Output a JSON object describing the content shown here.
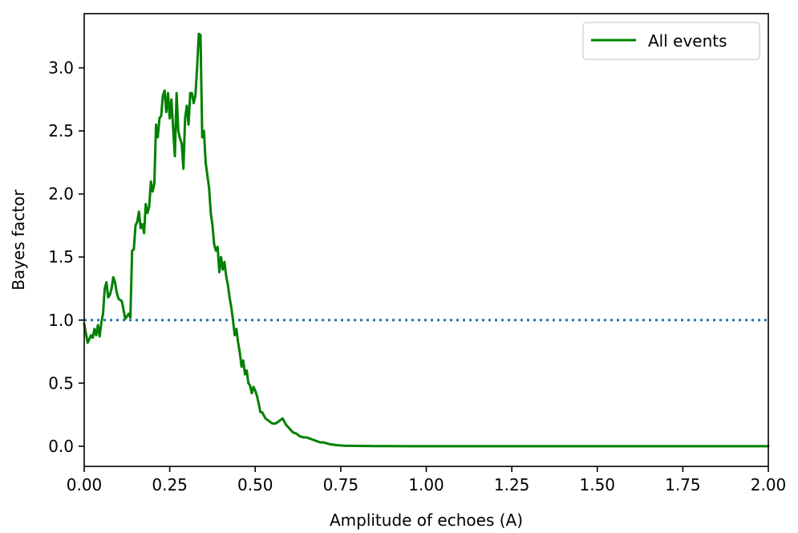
{
  "chart_data": {
    "type": "line",
    "title": "",
    "xlabel": "Amplitude of echoes (A)",
    "ylabel": "Bayes factor",
    "xlim": [
      0.0,
      2.0
    ],
    "ylim": [
      -0.16,
      3.43
    ],
    "xticks": [
      0.0,
      0.25,
      0.5,
      0.75,
      1.0,
      1.25,
      1.5,
      1.75,
      2.0
    ],
    "xtick_labels": [
      "0.00",
      "0.25",
      "0.50",
      "0.75",
      "1.00",
      "1.25",
      "1.50",
      "1.75",
      "2.00"
    ],
    "yticks": [
      0.0,
      0.5,
      1.0,
      1.5,
      2.0,
      2.5,
      3.0
    ],
    "ytick_labels": [
      "0.0",
      "0.5",
      "1.0",
      "1.5",
      "2.0",
      "2.5",
      "3.0"
    ],
    "grid": false,
    "legend": {
      "position": "upper-right"
    },
    "reference_line": {
      "y": 1.0,
      "style": "dotted",
      "color": "#1f77b4"
    },
    "series": [
      {
        "name": "All events",
        "color": "#008000",
        "x": [
          0.0,
          0.01,
          0.015,
          0.02,
          0.025,
          0.03,
          0.035,
          0.04,
          0.045,
          0.05,
          0.055,
          0.06,
          0.065,
          0.07,
          0.075,
          0.08,
          0.085,
          0.09,
          0.095,
          0.1,
          0.105,
          0.11,
          0.115,
          0.12,
          0.125,
          0.13,
          0.135,
          0.14,
          0.145,
          0.15,
          0.155,
          0.16,
          0.165,
          0.17,
          0.175,
          0.18,
          0.185,
          0.19,
          0.195,
          0.2,
          0.205,
          0.21,
          0.215,
          0.22,
          0.225,
          0.23,
          0.235,
          0.24,
          0.245,
          0.25,
          0.255,
          0.26,
          0.265,
          0.27,
          0.275,
          0.28,
          0.285,
          0.29,
          0.295,
          0.3,
          0.305,
          0.31,
          0.315,
          0.32,
          0.325,
          0.33,
          0.335,
          0.34,
          0.345,
          0.35,
          0.355,
          0.36,
          0.365,
          0.37,
          0.375,
          0.38,
          0.385,
          0.39,
          0.395,
          0.4,
          0.405,
          0.41,
          0.415,
          0.42,
          0.425,
          0.43,
          0.435,
          0.44,
          0.445,
          0.45,
          0.455,
          0.46,
          0.465,
          0.47,
          0.475,
          0.48,
          0.485,
          0.49,
          0.495,
          0.5,
          0.505,
          0.51,
          0.515,
          0.52,
          0.53,
          0.54,
          0.55,
          0.56,
          0.57,
          0.58,
          0.59,
          0.6,
          0.61,
          0.62,
          0.63,
          0.64,
          0.65,
          0.66,
          0.67,
          0.68,
          0.69,
          0.7,
          0.72,
          0.74,
          0.76,
          0.8,
          0.85,
          0.9,
          1.0,
          1.25,
          1.5,
          1.75,
          2.0
        ],
        "values": [
          0.97,
          0.82,
          0.85,
          0.88,
          0.86,
          0.93,
          0.88,
          0.96,
          0.87,
          0.98,
          1.05,
          1.25,
          1.3,
          1.18,
          1.2,
          1.25,
          1.34,
          1.3,
          1.22,
          1.17,
          1.16,
          1.15,
          1.08,
          1.01,
          1.03,
          1.05,
          1.02,
          1.55,
          1.56,
          1.75,
          1.78,
          1.86,
          1.73,
          1.76,
          1.69,
          1.92,
          1.85,
          1.9,
          2.1,
          2.02,
          2.08,
          2.55,
          2.45,
          2.6,
          2.62,
          2.78,
          2.82,
          2.65,
          2.8,
          2.6,
          2.75,
          2.52,
          2.3,
          2.8,
          2.5,
          2.44,
          2.4,
          2.2,
          2.6,
          2.7,
          2.55,
          2.8,
          2.8,
          2.72,
          2.78,
          3.0,
          3.27,
          3.26,
          2.45,
          2.5,
          2.25,
          2.15,
          2.05,
          1.85,
          1.75,
          1.6,
          1.55,
          1.58,
          1.38,
          1.5,
          1.4,
          1.46,
          1.35,
          1.28,
          1.18,
          1.1,
          1.0,
          0.88,
          0.93,
          0.82,
          0.74,
          0.63,
          0.68,
          0.57,
          0.6,
          0.5,
          0.48,
          0.42,
          0.47,
          0.44,
          0.4,
          0.34,
          0.27,
          0.27,
          0.22,
          0.2,
          0.18,
          0.18,
          0.2,
          0.22,
          0.17,
          0.14,
          0.11,
          0.1,
          0.08,
          0.07,
          0.07,
          0.06,
          0.05,
          0.04,
          0.03,
          0.03,
          0.015,
          0.008,
          0.004,
          0.002,
          0.001,
          0.0005,
          0.0,
          0.0,
          0.0,
          0.0,
          0.0
        ]
      }
    ]
  }
}
